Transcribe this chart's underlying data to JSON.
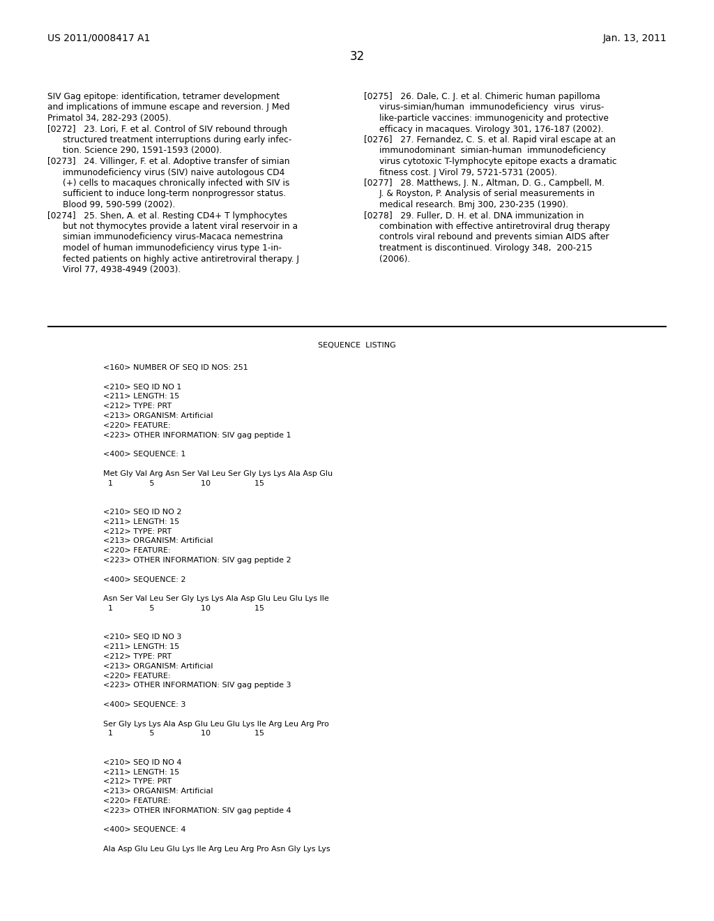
{
  "background_color": "#ffffff",
  "header_left": "US 2011/0008417 A1",
  "header_right": "Jan. 13, 2011",
  "page_number": "32",
  "left_col_lines": [
    "SIV Gag epitope: identification, tetramer development",
    "and implications of immune escape and reversion. ⁠J Med",
    "Primatol⁠ 34, 282-293 (2005).",
    "[0272]   23. Lori, F. et al. Control of SIV rebound through",
    "    structured treatment interruptions during early infec-",
    "    tion. ⁠Science⁠ 290, 1591-1593 (2000).",
    "[0273]   24. Villinger, F. et al. Adoptive transfer of simian",
    "    immunodeficiency virus (SIV) naive autologous CD4",
    "    (+) cells to macaques chronically infected with SIV is",
    "    sufficient to induce long-term nonprogressor status.",
    "    ⁠Blood⁠ 99, 590-599 (2002).",
    "[0274]   25. Shen, A. et al. Resting CD4+ T lymphocytes",
    "    but not thymocytes provide a latent viral reservoir in a",
    "    simian immunodeficiency virus-⁠Macaca nemestrina⁠",
    "    model of human immunodeficiency virus type 1-in-",
    "    fected patients on highly active antiretroviral therapy. ⁠J",
    "    ⁠Virol⁠ 77, 4938-4949 (2003)."
  ],
  "right_col_lines": [
    "[0275]   26. Dale, C. J. et al. Chimeric human papilloma",
    "    virus-simian/human  immunodeficiency  virus  virus-",
    "    like-particle vaccines: immunogenicity and protective",
    "    efficacy in macaques. ⁠Virology⁠ 301, 176-187 (2002).",
    "[0276]   27. Fernandez, C. S. et al. Rapid viral escape at an",
    "    immunodominant  simian-human  immunodeficiency",
    "    virus cytotoxic T-lymphocyte epitope exacts a dramatic",
    "    fitness cost. ⁠J Virol⁠ 79, 5721-5731 (2005).",
    "[0277]   28. Matthews, J. N., Altman, D. G., Campbell, M.",
    "    J. & Royston, P. Analysis of serial measurements in",
    "    medical research. ⁠Bmj⁠ 300, 230-235 (1990).",
    "[0278]   29. Fuller, D. H. et al. DNA immunization in",
    "    combination with effective antiretroviral drug therapy",
    "    controls viral rebound and prevents simian AIDS after",
    "    treatment is discontinued. ⁠Virology⁠ 348,  200-215",
    "    (2006)."
  ],
  "seq_lines": [
    "<160> NUMBER OF SEQ ID NOS: 251",
    "",
    "<210> SEQ ID NO 1",
    "<211> LENGTH: 15",
    "<212> TYPE: PRT",
    "<213> ORGANISM: Artificial",
    "<220> FEATURE:",
    "<223> OTHER INFORMATION: SIV gag peptide 1",
    "",
    "<400> SEQUENCE: 1",
    "",
    "Met Gly Val Arg Asn Ser Val Leu Ser Gly Lys Lys Ala Asp Glu",
    "  1               5                   10                  15",
    "",
    "",
    "<210> SEQ ID NO 2",
    "<211> LENGTH: 15",
    "<212> TYPE: PRT",
    "<213> ORGANISM: Artificial",
    "<220> FEATURE:",
    "<223> OTHER INFORMATION: SIV gag peptide 2",
    "",
    "<400> SEQUENCE: 2",
    "",
    "Asn Ser Val Leu Ser Gly Lys Lys Ala Asp Glu Leu Glu Lys Ile",
    "  1               5                   10                  15",
    "",
    "",
    "<210> SEQ ID NO 3",
    "<211> LENGTH: 15",
    "<212> TYPE: PRT",
    "<213> ORGANISM: Artificial",
    "<220> FEATURE:",
    "<223> OTHER INFORMATION: SIV gag peptide 3",
    "",
    "<400> SEQUENCE: 3",
    "",
    "Ser Gly Lys Lys Ala Asp Glu Leu Glu Lys Ile Arg Leu Arg Pro",
    "  1               5                   10                  15",
    "",
    "",
    "<210> SEQ ID NO 4",
    "<211> LENGTH: 15",
    "<212> TYPE: PRT",
    "<213> ORGANISM: Artificial",
    "<220> FEATURE:",
    "<223> OTHER INFORMATION: SIV gag peptide 4",
    "",
    "<400> SEQUENCE: 4",
    "",
    "Ala Asp Glu Leu Glu Lys Ile Arg Leu Arg Pro Asn Gly Lys Lys"
  ]
}
